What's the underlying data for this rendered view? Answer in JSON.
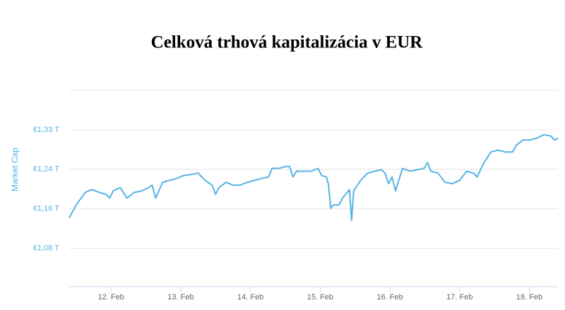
{
  "chart_data": {
    "type": "line",
    "title": "Celková trhová kapitalizácia v EUR",
    "y_label": "Market Cap",
    "color": "#55b3e3",
    "grid": true,
    "xlim": [
      11.4,
      18.41
    ],
    "xticks": [
      {
        "value": 12,
        "label": "12. Feb"
      },
      {
        "value": 13,
        "label": "13. Feb"
      },
      {
        "value": 14,
        "label": "14. Feb"
      },
      {
        "value": 15,
        "label": "15. Feb"
      },
      {
        "value": 16,
        "label": "16. Feb"
      },
      {
        "value": 17,
        "label": "17. Feb"
      },
      {
        "value": 18,
        "label": "18. Feb"
      }
    ],
    "ylim": [
      1.0,
      1.408
    ],
    "yticks": [
      {
        "value": 1.08,
        "label": "€1,08 T"
      },
      {
        "value": 1.162,
        "label": "€1,16 T"
      },
      {
        "value": 1.244,
        "label": "€1,24 T"
      },
      {
        "value": 1.326,
        "label": "€1,33 T"
      }
    ],
    "x": [
      11.4,
      11.5,
      11.63,
      11.73,
      11.83,
      11.93,
      11.98,
      12.03,
      12.13,
      12.23,
      12.33,
      12.44,
      12.54,
      12.59,
      12.64,
      12.74,
      12.84,
      12.94,
      13.04,
      13.14,
      13.25,
      13.35,
      13.45,
      13.5,
      13.55,
      13.65,
      13.75,
      13.85,
      13.96,
      14.06,
      14.16,
      14.26,
      14.31,
      14.41,
      14.51,
      14.56,
      14.61,
      14.66,
      14.77,
      14.87,
      14.97,
      15.02,
      15.09,
      15.12,
      15.15,
      15.19,
      15.27,
      15.32,
      15.42,
      15.45,
      15.48,
      15.58,
      15.68,
      15.78,
      15.88,
      15.93,
      15.98,
      16.03,
      16.08,
      16.18,
      16.29,
      16.39,
      16.49,
      16.54,
      16.59,
      16.69,
      16.79,
      16.89,
      17.0,
      17.1,
      17.2,
      17.25,
      17.35,
      17.45,
      17.55,
      17.65,
      17.76,
      17.81,
      17.91,
      18.01,
      18.11,
      18.21,
      18.31,
      18.36,
      18.41
    ],
    "values": [
      1.143,
      1.17,
      1.196,
      1.202,
      1.196,
      1.192,
      1.184,
      1.199,
      1.206,
      1.184,
      1.196,
      1.199,
      1.206,
      1.211,
      1.184,
      1.217,
      1.221,
      1.225,
      1.231,
      1.233,
      1.236,
      1.221,
      1.211,
      1.192,
      1.206,
      1.217,
      1.211,
      1.211,
      1.217,
      1.221,
      1.225,
      1.228,
      1.246,
      1.246,
      1.25,
      1.25,
      1.228,
      1.24,
      1.24,
      1.24,
      1.246,
      1.231,
      1.228,
      1.211,
      1.163,
      1.17,
      1.17,
      1.184,
      1.202,
      1.138,
      1.199,
      1.221,
      1.236,
      1.24,
      1.243,
      1.236,
      1.214,
      1.228,
      1.199,
      1.246,
      1.24,
      1.243,
      1.246,
      1.258,
      1.24,
      1.236,
      1.217,
      1.214,
      1.221,
      1.24,
      1.236,
      1.228,
      1.258,
      1.28,
      1.284,
      1.28,
      1.28,
      1.294,
      1.305,
      1.305,
      1.309,
      1.316,
      1.313,
      1.305,
      1.309
    ]
  }
}
